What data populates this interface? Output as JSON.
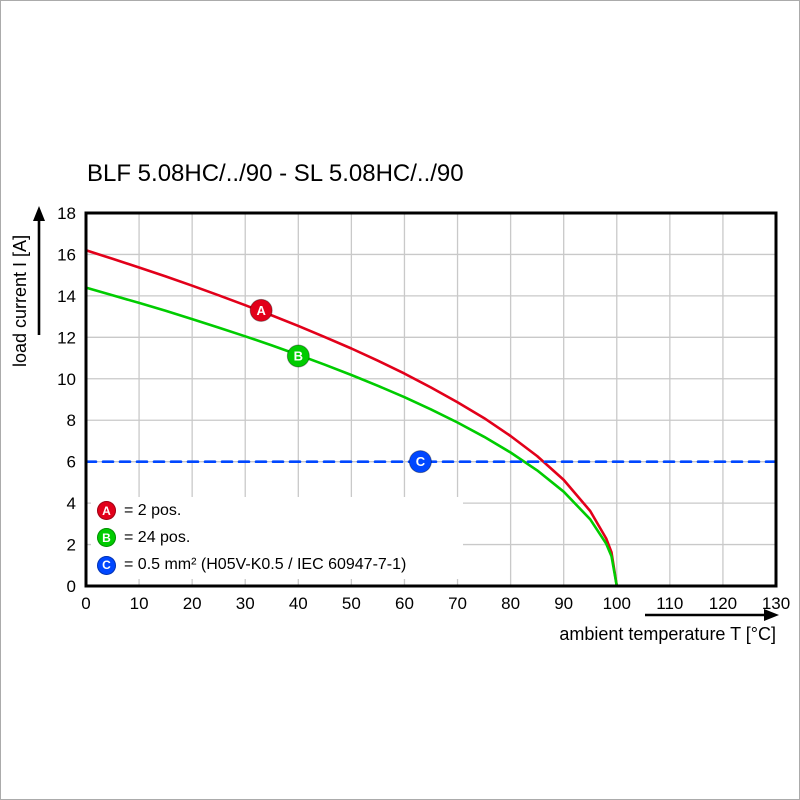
{
  "page": {
    "title": "BLF 5.08HC/../90 - SL 5.08HC/../90"
  },
  "chart_data": {
    "type": "line",
    "title": "BLF 5.08HC/../90 - SL 5.08HC/../90",
    "xlabel": "ambient temperature T [°C]",
    "ylabel": "load current I [A]",
    "xlim": [
      0,
      130
    ],
    "ylim": [
      0,
      18
    ],
    "x_ticks": [
      0,
      10,
      20,
      30,
      40,
      50,
      60,
      70,
      80,
      90,
      100,
      110,
      120,
      130
    ],
    "y_ticks": [
      0,
      2,
      4,
      6,
      8,
      10,
      12,
      14,
      16,
      18
    ],
    "grid": true,
    "grid_color": "#c9c9c9",
    "axis_color": "#000000",
    "legend_position": "lower-left",
    "series": [
      {
        "name": "A",
        "legend_label": "= 2 pos.",
        "color": "#e2001a",
        "style": "solid",
        "points": [
          [
            0,
            16.2
          ],
          [
            5,
            15.79
          ],
          [
            10,
            15.37
          ],
          [
            15,
            14.94
          ],
          [
            20,
            14.49
          ],
          [
            25,
            14.03
          ],
          [
            30,
            13.55
          ],
          [
            35,
            13.06
          ],
          [
            40,
            12.55
          ],
          [
            45,
            12.01
          ],
          [
            50,
            11.46
          ],
          [
            55,
            10.87
          ],
          [
            60,
            10.25
          ],
          [
            65,
            9.58
          ],
          [
            70,
            8.87
          ],
          [
            75,
            8.1
          ],
          [
            80,
            7.24
          ],
          [
            85,
            6.27
          ],
          [
            90,
            5.12
          ],
          [
            95,
            3.62
          ],
          [
            98,
            2.29
          ],
          [
            99,
            1.62
          ],
          [
            100,
            0
          ]
        ]
      },
      {
        "name": "B",
        "legend_label": "= 24 pos.",
        "color": "#00cc00",
        "style": "solid",
        "points": [
          [
            0,
            14.4
          ],
          [
            5,
            14.03
          ],
          [
            10,
            13.66
          ],
          [
            15,
            13.28
          ],
          [
            20,
            12.88
          ],
          [
            25,
            12.47
          ],
          [
            30,
            12.05
          ],
          [
            35,
            11.61
          ],
          [
            40,
            11.15
          ],
          [
            45,
            10.68
          ],
          [
            50,
            10.18
          ],
          [
            55,
            9.66
          ],
          [
            60,
            9.11
          ],
          [
            65,
            8.52
          ],
          [
            70,
            7.89
          ],
          [
            75,
            7.2
          ],
          [
            80,
            6.44
          ],
          [
            85,
            5.58
          ],
          [
            90,
            4.55
          ],
          [
            95,
            3.22
          ],
          [
            98,
            2.04
          ],
          [
            99,
            1.44
          ],
          [
            100,
            0
          ]
        ]
      },
      {
        "name": "C",
        "legend_label": "= 0.5 mm² (H05V-K0.5 / IEC 60947-7-1)",
        "color": "#0047ff",
        "style": "dashed",
        "points": [
          [
            0,
            6
          ],
          [
            130,
            6
          ]
        ]
      }
    ],
    "markers": [
      {
        "name": "A",
        "x": 33,
        "y": 13.3
      },
      {
        "name": "B",
        "x": 40,
        "y": 11.1
      },
      {
        "name": "C",
        "x": 63,
        "y": 6
      }
    ]
  }
}
